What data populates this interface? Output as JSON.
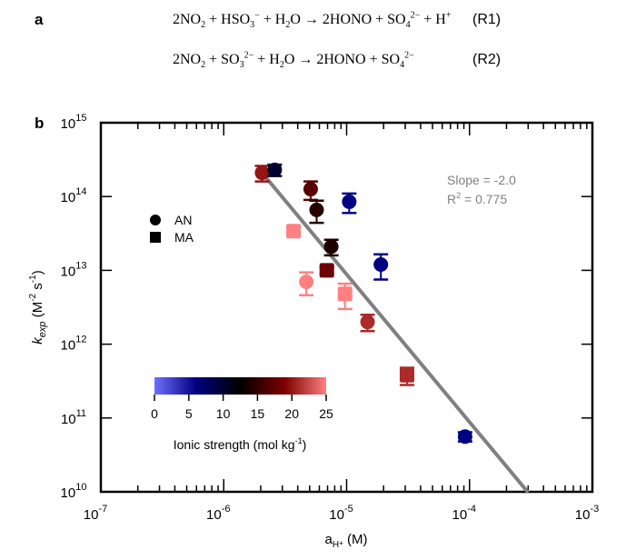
{
  "panel_a": {
    "label": "a",
    "reactions": [
      {
        "lhs": [
          "2NO",
          "2",
          " + HSO",
          "3",
          "−",
          " + H",
          "2",
          "O"
        ],
        "text": "2NO2 + HSO3− + H2O → 2HONO + SO4 2− + H+",
        "tag": "(R1)"
      },
      {
        "text": "2NO2 + SO3 2− + H2O → 2HONO + SO4 2−",
        "tag": "(R2)"
      }
    ]
  },
  "panel_b": {
    "label": "b"
  },
  "chart_data": {
    "type": "scatter",
    "title": "",
    "xlabel": "a_H+ (M)",
    "ylabel": "k_exp (M^-2 s^-1)",
    "xscale": "log",
    "yscale": "log",
    "xlim": [
      1e-07,
      0.001
    ],
    "ylim": [
      10000000000.0,
      1000000000000000.0
    ],
    "x_ticks": [
      "10^-7",
      "10^-6",
      "10^-5",
      "10^-4",
      "10^-3"
    ],
    "y_ticks": [
      "10^10",
      "10^11",
      "10^12",
      "10^13",
      "10^14",
      "10^15"
    ],
    "grid": false,
    "legend": {
      "placement": "upper-left",
      "entries": [
        {
          "marker": "circle",
          "label": "AN"
        },
        {
          "marker": "square",
          "label": "MA"
        }
      ]
    },
    "annotation": {
      "slope_text": "Slope = -2.0",
      "r2_text": "R",
      "r2_sup": "2",
      "r2_value": " = 0.775"
    },
    "fit_line": {
      "slope": -2.0,
      "r2": 0.775,
      "x_range": [
        2.05e-06,
        0.0003
      ],
      "y_at_start": 210000000000000.0
    },
    "colorbar": {
      "label": "Ionic strength (mol kg",
      "label_sup": "-1",
      "label_end": ")",
      "range": [
        0,
        25
      ],
      "ticks": [
        0,
        5,
        10,
        15,
        20,
        25
      ],
      "tick_labels": [
        "0",
        "5",
        "10",
        "15",
        "20",
        "25"
      ],
      "stops": [
        {
          "value": 0,
          "color": "#7070ff"
        },
        {
          "value": 6,
          "color": "#000080"
        },
        {
          "value": 12.5,
          "color": "#000000"
        },
        {
          "value": 19,
          "color": "#800000"
        },
        {
          "value": 25,
          "color": "#ff8080"
        }
      ]
    },
    "points": [
      {
        "x": 2.05e-06,
        "y": 210000000000000.0,
        "err": [
          160000000000000.0,
          260000000000000.0
        ],
        "marker": "circle",
        "ionic_strength": 20
      },
      {
        "x": 2.6e-06,
        "y": 230000000000000.0,
        "err": [
          190000000000000.0,
          270000000000000.0
        ],
        "marker": "circle",
        "ionic_strength": 10
      },
      {
        "x": 5.1e-06,
        "y": 126000000000000.0,
        "err": [
          90000000000000.0,
          160000000000000.0
        ],
        "marker": "circle",
        "ionic_strength": 17
      },
      {
        "x": 5.7e-06,
        "y": 66000000000000.0,
        "err": [
          44000000000000.0,
          88000000000000.0
        ],
        "marker": "circle",
        "ionic_strength": 14.5
      },
      {
        "x": 1.05e-05,
        "y": 85000000000000.0,
        "err": [
          60000000000000.0,
          110000000000000.0
        ],
        "marker": "circle",
        "ionic_strength": 6
      },
      {
        "x": 3.7e-06,
        "y": 34000000000000.0,
        "err": [
          30000000000000.0,
          38000000000000.0
        ],
        "marker": "square",
        "ionic_strength": 25
      },
      {
        "x": 7.5e-06,
        "y": 21000000000000.0,
        "err": [
          16000000000000.0,
          26000000000000.0
        ],
        "marker": "circle",
        "ionic_strength": 14
      },
      {
        "x": 6.9e-06,
        "y": 10000000000000.0,
        "err": [
          9000000000000.0,
          11000000000000.0
        ],
        "marker": "square",
        "ionic_strength": 18
      },
      {
        "x": 1.9e-05,
        "y": 12000000000000.0,
        "err": [
          7500000000000.0,
          16500000000000.0
        ],
        "marker": "circle",
        "ionic_strength": 6
      },
      {
        "x": 4.7e-06,
        "y": 7000000000000.0,
        "err": [
          4600000000000.0,
          9400000000000.0
        ],
        "marker": "circle",
        "ionic_strength": 25
      },
      {
        "x": 9.7e-06,
        "y": 4800000000000.0,
        "err": [
          3000000000000.0,
          6600000000000.0
        ],
        "marker": "square",
        "ionic_strength": 25
      },
      {
        "x": 1.48e-05,
        "y": 2000000000000.0,
        "err": [
          1500000000000.0,
          2500000000000.0
        ],
        "marker": "circle",
        "ionic_strength": 21
      },
      {
        "x": 3.1e-05,
        "y": 380000000000.0,
        "err": [
          280000000000.0,
          480000000000.0
        ],
        "marker": "square",
        "ionic_strength": 21
      },
      {
        "x": 9.2e-05,
        "y": 56000000000.0,
        "err": [
          48000000000.0,
          64000000000.0
        ],
        "marker": "circle",
        "ionic_strength": 6
      }
    ]
  }
}
